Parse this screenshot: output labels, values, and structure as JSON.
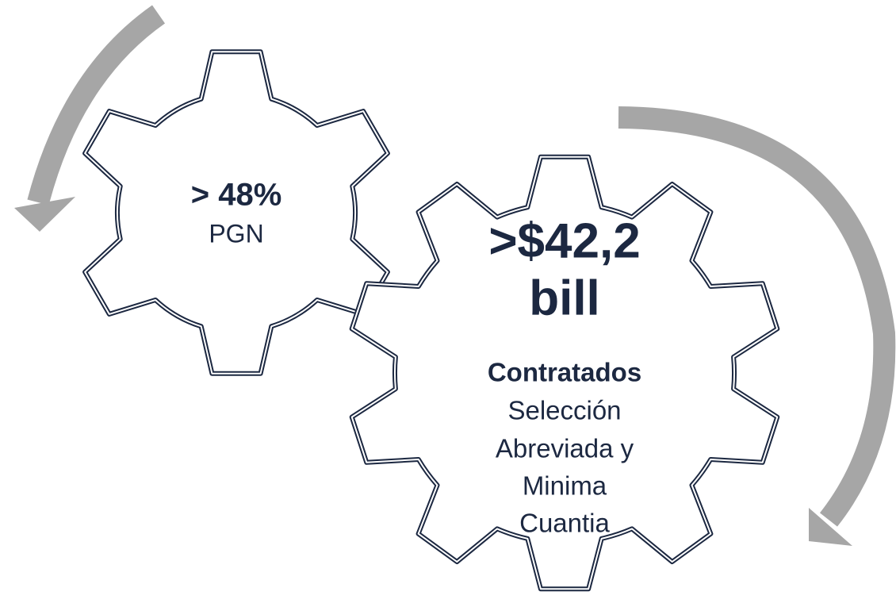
{
  "small_gear": {
    "figure": "> 48%",
    "label": "PGN"
  },
  "big_gear": {
    "figure_line1": ">$42,2",
    "figure_line2": "bill",
    "heading": "Contratados",
    "lines": [
      "Selección",
      "Abreviada y",
      "Minima",
      "Cuantia"
    ]
  }
}
